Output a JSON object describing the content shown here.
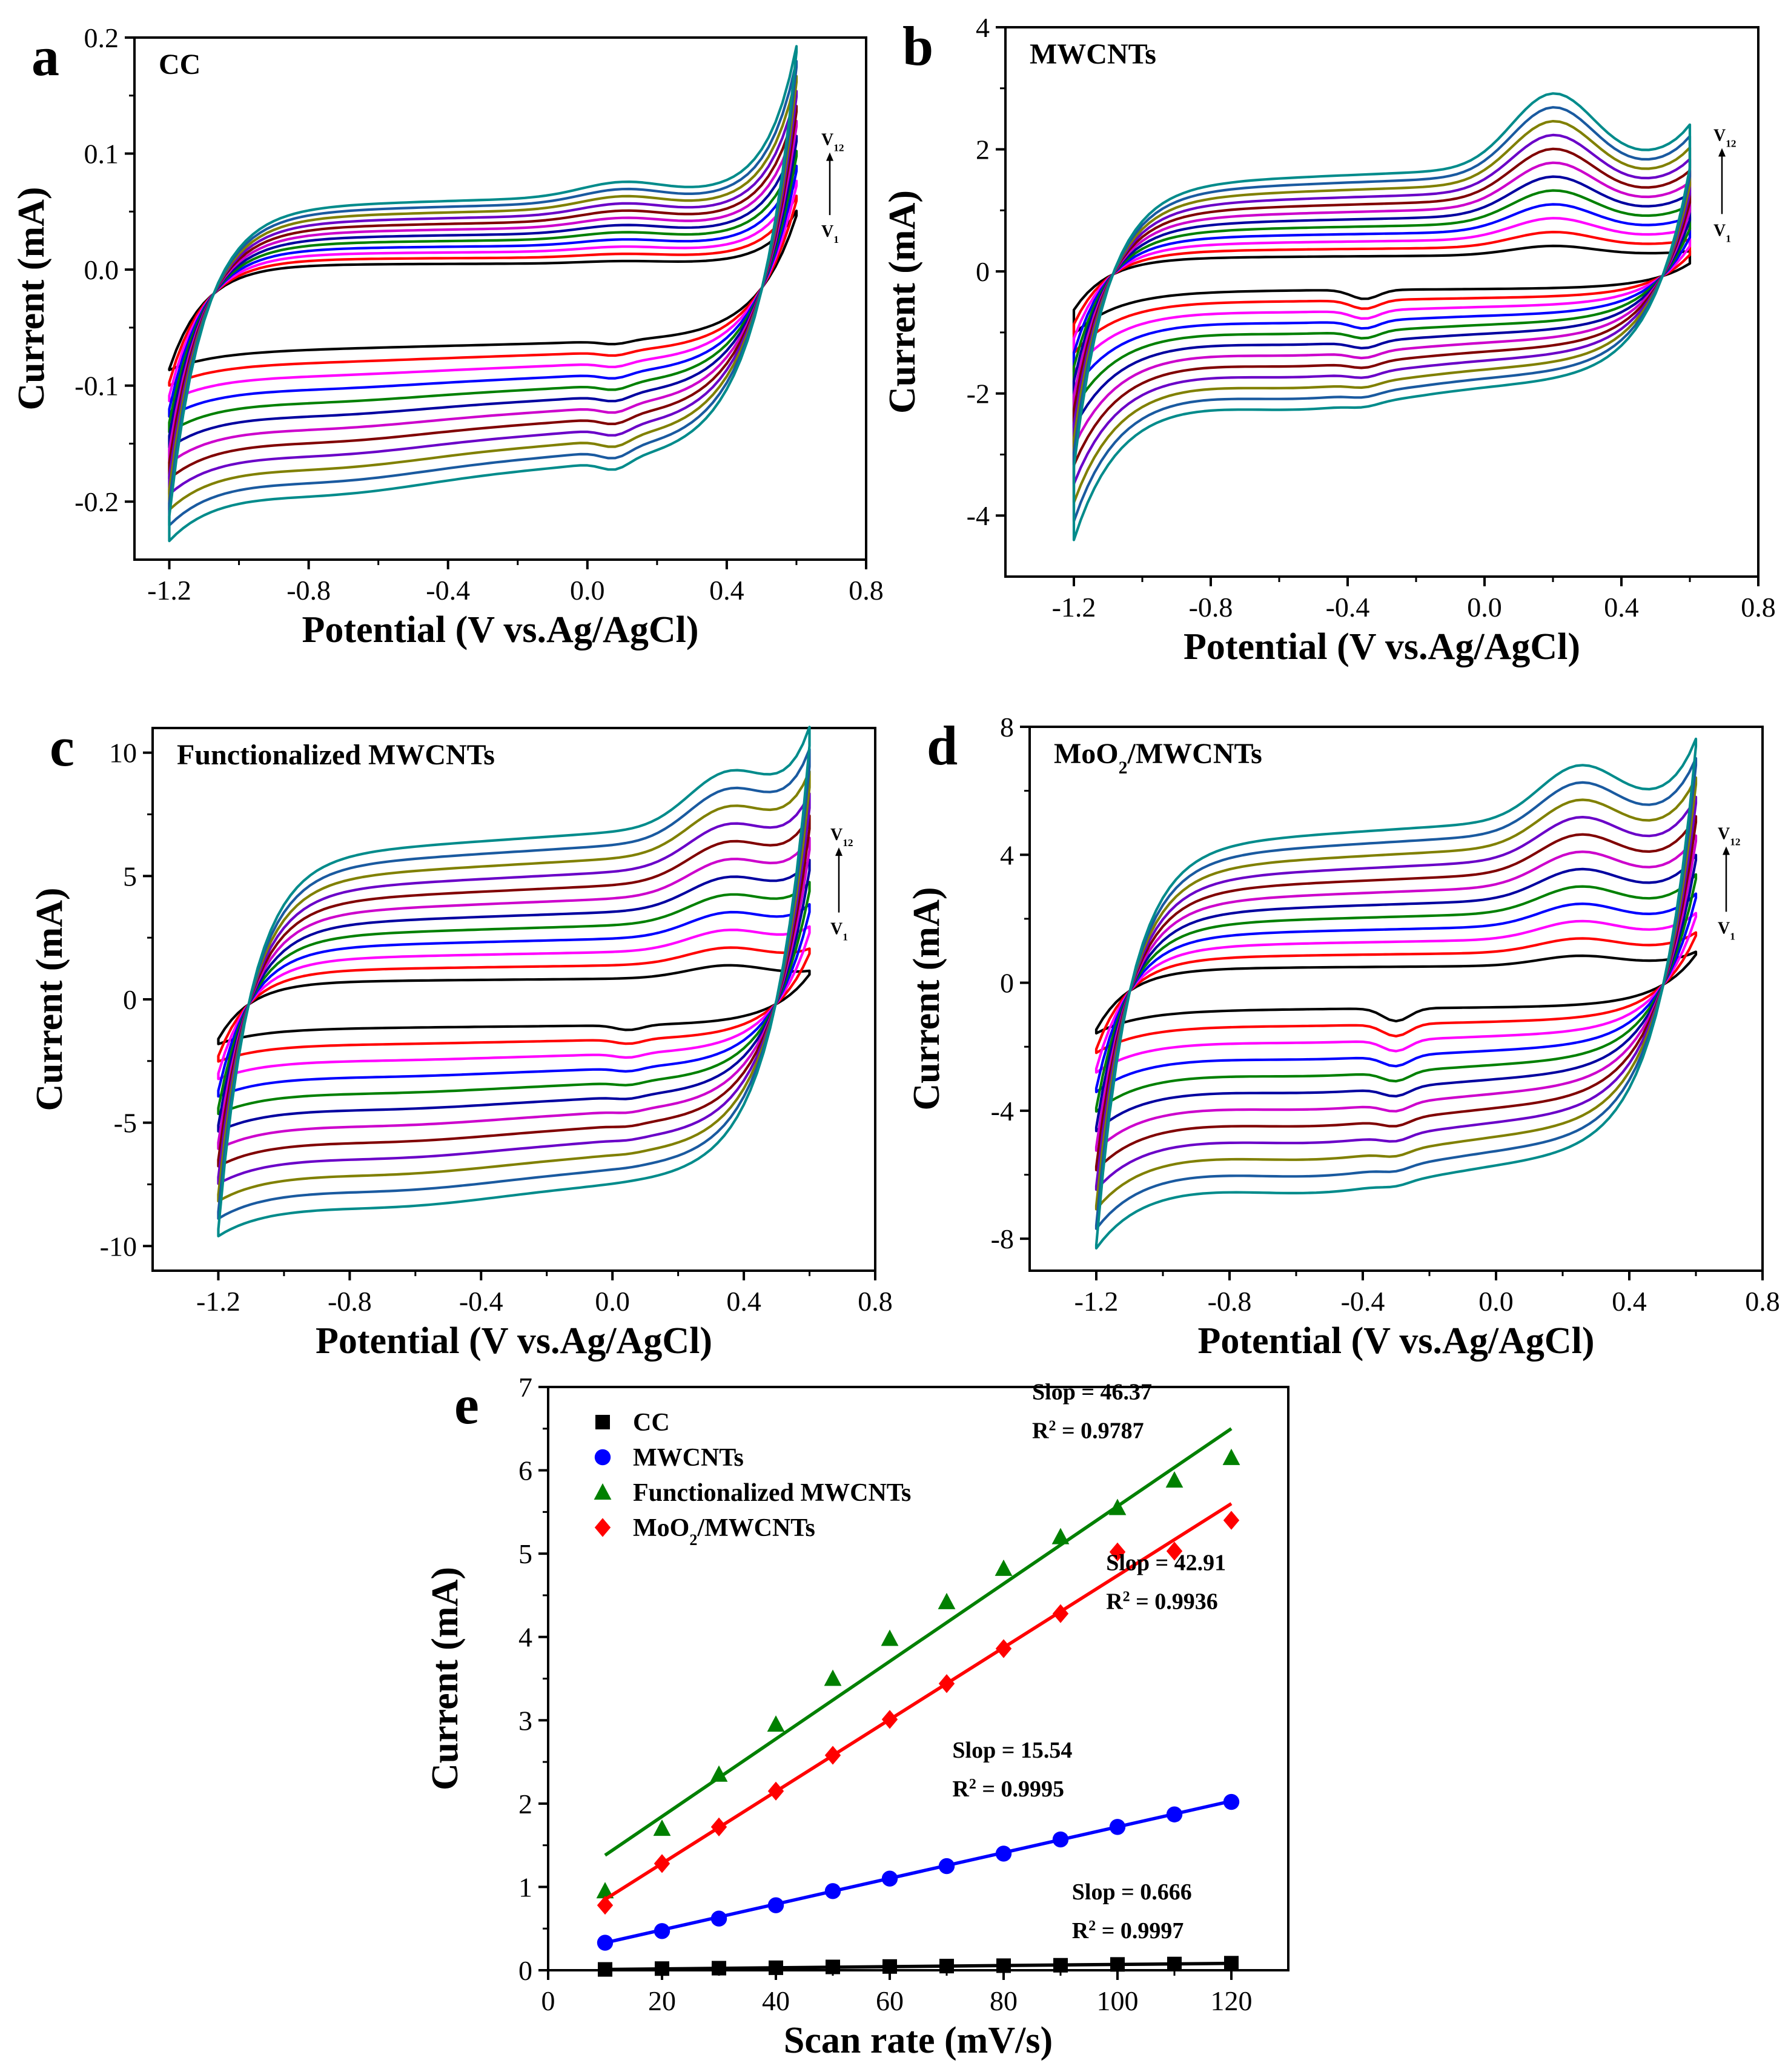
{
  "figure": {
    "colors": {
      "axis": "#000000",
      "cv": [
        "#000000",
        "#ff0000",
        "#ff00ff",
        "#0000ff",
        "#008000",
        "#0000a0",
        "#cc00cc",
        "#800000",
        "#6a00c8",
        "#808000",
        "#1a5aa0",
        "#008b8b"
      ]
    }
  },
  "chart_data": [
    {
      "id": "a",
      "type": "line",
      "panel_label": "a",
      "title": "CC",
      "xlabel": "Potential (V vs.Ag/AgCl)",
      "ylabel": "Current (mA)",
      "xlim": [
        -1.3,
        0.8
      ],
      "ylim": [
        -0.25,
        0.2
      ],
      "xticks": [
        -1.2,
        -0.8,
        -0.4,
        0.0,
        0.4,
        0.8
      ],
      "xtick_labels": [
        "-1.2",
        "-0.8",
        "-0.4",
        "0.0",
        "0.4",
        "0.8"
      ],
      "yticks": [
        -0.2,
        -0.1,
        0.0,
        0.1,
        0.2
      ],
      "ytick_labels": [
        "-0.2",
        "-0.1",
        "0.0",
        "0.1",
        "0.2"
      ],
      "scan_annotation": {
        "top": "V",
        "top_sub": "12",
        "bottom": "V",
        "bottom_sub": "1"
      },
      "xrange_data": [
        -1.2,
        0.6
      ],
      "curves": {
        "n": 12,
        "upper_start": [
          -0.085,
          -0.205
        ],
        "upper_mid": [
          0.005,
          0.06
        ],
        "upper_end": [
          0.05,
          0.185
        ],
        "lower_start": [
          -0.08,
          -0.215
        ],
        "lower_mid": [
          -0.065,
          -0.175
        ],
        "lower_end": [
          0.04,
          0.17
        ],
        "ox_peak": {
          "x": 0.1,
          "amp": [
            0.002,
            0.012
          ]
        },
        "red_peak": {
          "x": 0.08,
          "amp": [
            0.003,
            0.008
          ]
        },
        "hump": {
          "x": -0.7,
          "amp": [
            0.0,
            0.01
          ]
        }
      }
    },
    {
      "id": "b",
      "type": "line",
      "panel_label": "b",
      "title": "MWCNTs",
      "xlabel": "Potential (V vs.Ag/AgCl)",
      "ylabel": "Current (mA)",
      "xlim": [
        -1.4,
        0.8
      ],
      "ylim": [
        -5.0,
        4.0
      ],
      "xticks": [
        -1.2,
        -0.8,
        -0.4,
        0.0,
        0.4,
        0.8
      ],
      "xtick_labels": [
        "-1.2",
        "-0.8",
        "-0.4",
        "0.0",
        "0.4",
        "0.8"
      ],
      "yticks": [
        -4,
        -2,
        0,
        2,
        4
      ],
      "ytick_labels": [
        "-4",
        "-2",
        "0",
        "2",
        "4"
      ],
      "scan_annotation": {
        "top": "V",
        "top_sub": "12",
        "bottom": "V",
        "bottom_sub": "1"
      },
      "xrange_data": [
        -1.2,
        0.6
      ],
      "curves": {
        "n": 12,
        "upper_start": [
          -0.6,
          -3.0
        ],
        "upper_mid": [
          0.25,
          1.6
        ],
        "upper_end": [
          0.3,
          2.2
        ],
        "lower_start": [
          -1.0,
          -4.2
        ],
        "lower_mid": [
          -0.3,
          -1.95
        ],
        "lower_end": [
          0.1,
          1.5
        ],
        "ox_peak": {
          "x": 0.2,
          "amp": [
            0.15,
            1.2
          ]
        },
        "red_peak": {
          "x": -0.35,
          "amp": [
            0.15,
            0.05
          ]
        },
        "hump": {
          "x": -0.5,
          "amp": [
            0.0,
            0.25
          ]
        }
      }
    },
    {
      "id": "c",
      "type": "line",
      "panel_label": "c",
      "title": "Functionalized MWCNTs",
      "xlabel": "Potential (V vs.Ag/AgCl)",
      "ylabel": "Current (mA)",
      "xlim": [
        -1.4,
        0.8
      ],
      "ylim": [
        -11.0,
        11.0
      ],
      "xticks": [
        -1.2,
        -0.8,
        -0.4,
        0.0,
        0.4,
        0.8
      ],
      "xtick_labels": [
        "-1.2",
        "-0.8",
        "-0.4",
        "0.0",
        "0.4",
        "0.8"
      ],
      "yticks": [
        -10,
        -5,
        0,
        5,
        10
      ],
      "ytick_labels": [
        "-10",
        "-5",
        "0",
        "5",
        "10"
      ],
      "scan_annotation": {
        "top": "V",
        "top_sub": "12",
        "bottom": "V",
        "bottom_sub": "1"
      },
      "xrange_data": [
        -1.2,
        0.6
      ],
      "curves": {
        "n": 12,
        "upper_start": [
          -1.5,
          -8.5
        ],
        "upper_mid": [
          0.8,
          6.5
        ],
        "upper_end": [
          1.0,
          10.0
        ],
        "lower_start": [
          -1.7,
          -8.8
        ],
        "lower_mid": [
          -1.1,
          -7.8
        ],
        "lower_end": [
          0.9,
          9.5
        ],
        "ox_peak": {
          "x": 0.35,
          "amp": [
            0.5,
            2.0
          ]
        },
        "red_peak": {
          "x": 0.05,
          "amp": [
            0.2,
            0.0
          ]
        },
        "hump": {
          "x": -0.6,
          "amp": [
            0.0,
            0.3
          ]
        }
      }
    },
    {
      "id": "d",
      "type": "line",
      "panel_label": "d",
      "title": "MoO",
      "title_sub": "2",
      "title_rest": "/MWCNTs",
      "xlabel": "Potential (V vs.Ag/AgCl)",
      "ylabel": "Current (mA)",
      "xlim": [
        -1.4,
        0.8
      ],
      "ylim": [
        -9.0,
        8.0
      ],
      "xticks": [
        -1.2,
        -0.8,
        -0.4,
        0.0,
        0.4,
        0.8
      ],
      "xtick_labels": [
        "-1.2",
        "-0.8",
        "-0.4",
        "0.0",
        "0.4",
        "0.8"
      ],
      "yticks": [
        -8,
        -4,
        0,
        4,
        8
      ],
      "ytick_labels": [
        "-8",
        "-4",
        "0",
        "4",
        "8"
      ],
      "scan_annotation": {
        "top": "V",
        "top_sub": "12",
        "bottom": "V",
        "bottom_sub": "1"
      },
      "xrange_data": [
        -1.2,
        0.6
      ],
      "curves": {
        "n": 12,
        "upper_start": [
          -1.4,
          -7.6
        ],
        "upper_mid": [
          0.5,
          4.8
        ],
        "upper_end": [
          0.9,
          7.0
        ],
        "lower_start": [
          -1.5,
          -7.7
        ],
        "lower_mid": [
          -0.8,
          -5.9
        ],
        "lower_end": [
          0.8,
          6.8
        ],
        "ox_peak": {
          "x": 0.25,
          "amp": [
            0.3,
            1.6
          ]
        },
        "red_peak": {
          "x": -0.3,
          "amp": [
            0.4,
            0.1
          ]
        },
        "hump": {
          "x": -0.5,
          "amp": [
            0.0,
            0.5
          ]
        }
      }
    },
    {
      "id": "e",
      "type": "scatter",
      "panel_label": "e",
      "xlabel": "Scan rate (mV/s)",
      "ylabel": "Current (mA)",
      "xlim": [
        0,
        130
      ],
      "ylim": [
        0,
        7
      ],
      "xticks": [
        0,
        20,
        40,
        60,
        80,
        100,
        120
      ],
      "xtick_labels": [
        "0",
        "20",
        "40",
        "60",
        "80",
        "100",
        "120"
      ],
      "yticks": [
        0,
        1,
        2,
        3,
        4,
        5,
        6,
        7
      ],
      "ytick_labels": [
        "0",
        "1",
        "2",
        "3",
        "4",
        "5",
        "6",
        "7"
      ],
      "x": [
        10,
        20,
        30,
        40,
        50,
        60,
        70,
        80,
        90,
        100,
        110,
        120
      ],
      "legend_position": "top-left",
      "series": [
        {
          "name": "CC",
          "marker": "square",
          "color": "#000000",
          "values": [
            0.01,
            0.02,
            0.025,
            0.03,
            0.04,
            0.045,
            0.05,
            0.055,
            0.06,
            0.07,
            0.075,
            0.085
          ],
          "fit": {
            "x0": 10,
            "y0": 0.01,
            "x1": 120,
            "y1": 0.083
          },
          "slope_label": "Slop = 0.666",
          "r2_label": "R",
          "r2_value": " = 0.9997"
        },
        {
          "name": "MWCNTs",
          "marker": "circle",
          "color": "#0000ff",
          "values": [
            0.33,
            0.47,
            0.62,
            0.78,
            0.95,
            1.1,
            1.25,
            1.4,
            1.57,
            1.72,
            1.87,
            2.02
          ],
          "fit": {
            "x0": 10,
            "y0": 0.33,
            "x1": 120,
            "y1": 2.03
          },
          "slope_label": "Slop = 15.54",
          "r2_label": "R",
          "r2_value": " = 0.9995"
        },
        {
          "name": "Functionalized MWCNTs",
          "marker": "triangle",
          "color": "#008000",
          "values": [
            0.95,
            1.7,
            2.35,
            2.95,
            3.5,
            3.98,
            4.42,
            4.82,
            5.2,
            5.55,
            5.88,
            6.15
          ],
          "fit": {
            "x0": 10,
            "y0": 1.38,
            "x1": 120,
            "y1": 6.5
          },
          "slope_label": "Slop = 46.37",
          "r2_label": "R",
          "r2_value": " = 0.9787"
        },
        {
          "name": "MoO",
          "name_sub": "2",
          "name_rest": "/MWCNTs",
          "marker": "diamond",
          "color": "#ff0000",
          "values": [
            0.78,
            1.28,
            1.72,
            2.15,
            2.58,
            3.01,
            3.44,
            3.86,
            4.28,
            5.02,
            5.03,
            5.4
          ],
          "fit": {
            "x0": 10,
            "y0": 0.85,
            "x1": 120,
            "y1": 5.6
          },
          "slope_label": "Slop = 42.91",
          "r2_label": "R",
          "r2_value": " = 0.9936"
        }
      ]
    }
  ]
}
